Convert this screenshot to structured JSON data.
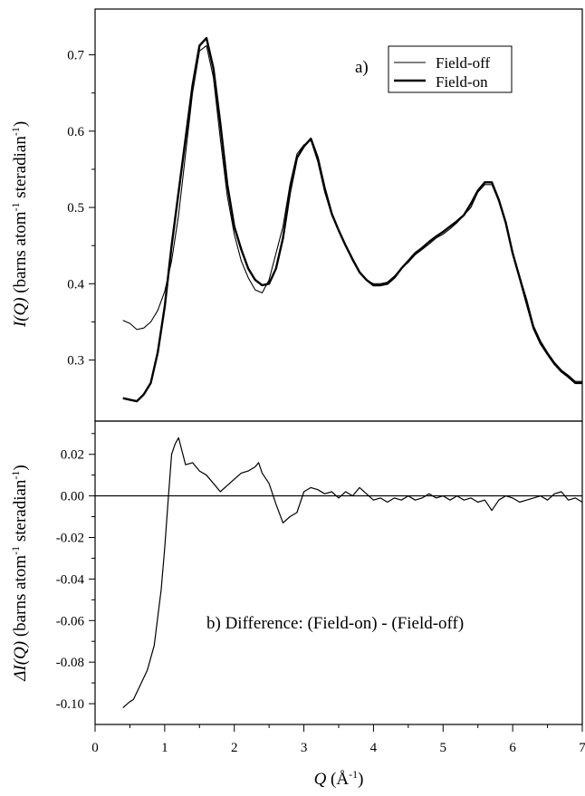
{
  "chart_data": [
    {
      "type": "line",
      "panel_label": "a)",
      "ylabel": {
        "main": "I(Q)",
        "units": "(barns atom",
        "sup1": "-1",
        "mid": " steradian",
        "sup2": "-1",
        "close": ")"
      },
      "xlim": [
        0,
        7
      ],
      "ylim": [
        0.22,
        0.76
      ],
      "yticks": [
        "0.3",
        "0.4",
        "0.5",
        "0.6",
        "0.7"
      ],
      "ytick_values": [
        0.3,
        0.4,
        0.5,
        0.6,
        0.7
      ],
      "legend_position": "top-right",
      "series": [
        {
          "name": "Field-off",
          "style": "thin",
          "x": [
            0.4,
            0.5,
            0.6,
            0.7,
            0.8,
            0.9,
            1.0,
            1.1,
            1.2,
            1.3,
            1.4,
            1.5,
            1.6,
            1.7,
            1.8,
            1.9,
            2.0,
            2.1,
            2.2,
            2.3,
            2.4,
            2.5,
            2.6,
            2.7,
            2.8,
            2.9,
            3.0,
            3.1,
            3.2,
            3.3,
            3.4,
            3.5,
            3.6,
            3.7,
            3.8,
            3.9,
            4.0,
            4.1,
            4.2,
            4.3,
            4.4,
            4.5,
            4.6,
            4.7,
            4.8,
            4.9,
            5.0,
            5.1,
            5.2,
            5.3,
            5.4,
            5.5,
            5.6,
            5.7,
            5.8,
            5.9,
            6.0,
            6.1,
            6.2,
            6.3,
            6.4,
            6.5,
            6.6,
            6.7,
            6.8,
            6.9,
            7.0
          ],
          "y": [
            0.352,
            0.348,
            0.34,
            0.342,
            0.35,
            0.365,
            0.39,
            0.43,
            0.49,
            0.57,
            0.65,
            0.705,
            0.712,
            0.67,
            0.59,
            0.515,
            0.465,
            0.43,
            0.408,
            0.392,
            0.388,
            0.405,
            0.44,
            0.475,
            0.53,
            0.57,
            0.582,
            0.588,
            0.56,
            0.52,
            0.49,
            0.47,
            0.45,
            0.43,
            0.415,
            0.405,
            0.4,
            0.4,
            0.402,
            0.41,
            0.42,
            0.428,
            0.438,
            0.445,
            0.452,
            0.46,
            0.465,
            0.472,
            0.48,
            0.49,
            0.5,
            0.52,
            0.53,
            0.53,
            0.508,
            0.48,
            0.44,
            0.41,
            0.38,
            0.345,
            0.325,
            0.31,
            0.297,
            0.287,
            0.28,
            0.272,
            0.272
          ]
        },
        {
          "name": "Field-on",
          "style": "thick",
          "x": [
            0.4,
            0.5,
            0.6,
            0.7,
            0.8,
            0.9,
            1.0,
            1.1,
            1.2,
            1.3,
            1.4,
            1.5,
            1.6,
            1.7,
            1.8,
            1.9,
            2.0,
            2.1,
            2.2,
            2.3,
            2.4,
            2.5,
            2.6,
            2.7,
            2.8,
            2.9,
            3.0,
            3.1,
            3.2,
            3.3,
            3.4,
            3.5,
            3.6,
            3.7,
            3.8,
            3.9,
            4.0,
            4.1,
            4.2,
            4.3,
            4.4,
            4.5,
            4.6,
            4.7,
            4.8,
            4.9,
            5.0,
            5.1,
            5.2,
            5.3,
            5.4,
            5.5,
            5.6,
            5.7,
            5.8,
            5.9,
            6.0,
            6.1,
            6.2,
            6.3,
            6.4,
            6.5,
            6.6,
            6.7,
            6.8,
            6.9,
            7.0
          ],
          "y": [
            0.25,
            0.248,
            0.246,
            0.255,
            0.27,
            0.31,
            0.37,
            0.45,
            0.52,
            0.59,
            0.66,
            0.712,
            0.722,
            0.682,
            0.61,
            0.53,
            0.475,
            0.445,
            0.42,
            0.405,
            0.398,
            0.4,
            0.42,
            0.46,
            0.52,
            0.565,
            0.58,
            0.59,
            0.565,
            0.525,
            0.492,
            0.47,
            0.45,
            0.432,
            0.415,
            0.405,
            0.398,
            0.398,
            0.4,
            0.408,
            0.42,
            0.43,
            0.44,
            0.447,
            0.455,
            0.462,
            0.468,
            0.475,
            0.482,
            0.49,
            0.505,
            0.522,
            0.533,
            0.533,
            0.51,
            0.48,
            0.44,
            0.408,
            0.375,
            0.342,
            0.322,
            0.308,
            0.295,
            0.285,
            0.278,
            0.27,
            0.27
          ]
        }
      ]
    },
    {
      "type": "line",
      "annotation": "b) Difference: (Field-on) - (Field-off)",
      "ylabel": {
        "main": "ΔI(Q)",
        "units": "(barns atom",
        "sup1": "-1",
        "mid": " steradian",
        "sup2": "-1",
        "close": ")"
      },
      "xlabel": {
        "main": "Q",
        "units": "(Å",
        "sup": "-1",
        "close": ")"
      },
      "xlim": [
        0,
        7
      ],
      "ylim": [
        -0.11,
        0.036
      ],
      "xticks": [
        "0",
        "1",
        "2",
        "3",
        "4",
        "5",
        "6",
        "7"
      ],
      "xtick_values": [
        0,
        1,
        2,
        3,
        4,
        5,
        6,
        7
      ],
      "yticks": [
        "0.02",
        "0.00",
        "-0.02",
        "-0.04",
        "-0.06",
        "-0.08",
        "-0.10"
      ],
      "ytick_values": [
        0.02,
        0.0,
        -0.02,
        -0.04,
        -0.06,
        -0.08,
        -0.1
      ],
      "reference_line_y": 0.0,
      "series": [
        {
          "style": "thin",
          "x": [
            0.4,
            0.5,
            0.55,
            0.65,
            0.75,
            0.85,
            0.95,
            1.0,
            1.05,
            1.1,
            1.15,
            1.2,
            1.3,
            1.4,
            1.5,
            1.6,
            1.7,
            1.8,
            1.9,
            2.0,
            2.1,
            2.2,
            2.3,
            2.35,
            2.4,
            2.5,
            2.6,
            2.7,
            2.8,
            2.9,
            3.0,
            3.1,
            3.2,
            3.3,
            3.4,
            3.5,
            3.6,
            3.7,
            3.8,
            3.9,
            4.0,
            4.1,
            4.2,
            4.3,
            4.4,
            4.5,
            4.6,
            4.7,
            4.8,
            4.9,
            5.0,
            5.1,
            5.2,
            5.3,
            5.4,
            5.5,
            5.6,
            5.7,
            5.8,
            5.9,
            6.0,
            6.1,
            6.2,
            6.3,
            6.4,
            6.5,
            6.6,
            6.7,
            6.8,
            6.9,
            7.0
          ],
          "y": [
            -0.102,
            -0.099,
            -0.098,
            -0.091,
            -0.084,
            -0.072,
            -0.045,
            -0.025,
            -0.002,
            0.02,
            0.025,
            0.028,
            0.015,
            0.016,
            0.012,
            0.01,
            0.006,
            0.002,
            0.005,
            0.008,
            0.011,
            0.012,
            0.014,
            0.016,
            0.011,
            0.006,
            -0.004,
            -0.013,
            -0.01,
            -0.008,
            0.002,
            0.004,
            0.003,
            0.001,
            0.002,
            -0.001,
            0.002,
            0.0,
            0.004,
            0.001,
            -0.002,
            -0.001,
            -0.003,
            -0.001,
            -0.002,
            0.0,
            -0.002,
            -0.001,
            0.001,
            -0.001,
            0.0,
            -0.002,
            0.0,
            -0.002,
            -0.001,
            -0.003,
            -0.002,
            -0.007,
            -0.002,
            0.0,
            -0.001,
            -0.003,
            -0.002,
            -0.001,
            0.0,
            -0.002,
            0.001,
            0.002,
            -0.002,
            -0.001,
            -0.003
          ]
        }
      ]
    }
  ]
}
